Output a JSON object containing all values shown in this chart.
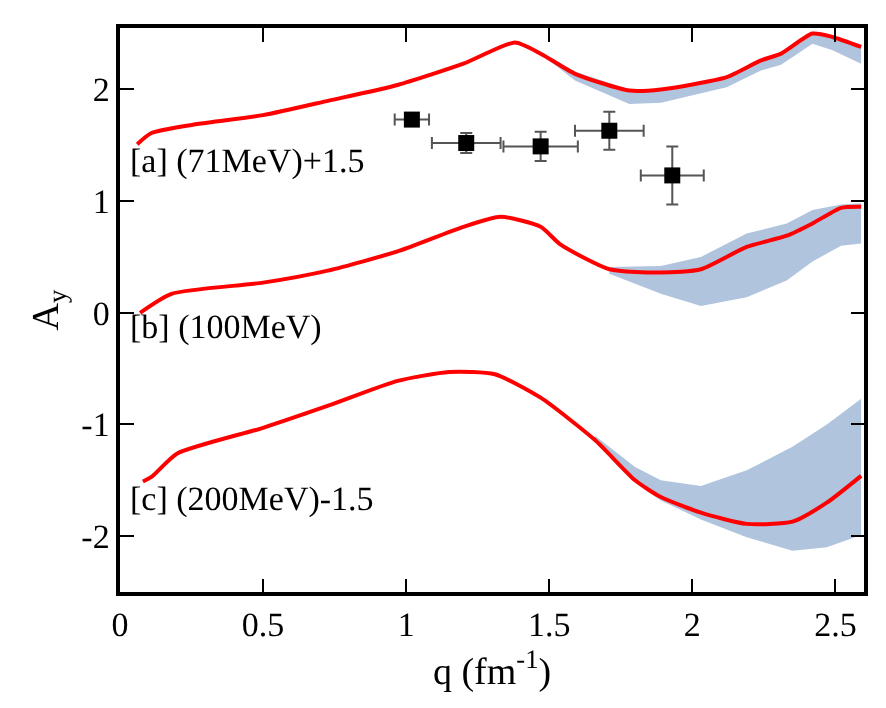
{
  "chart_data": {
    "type": "line",
    "xlabel": "q (fm$^{-1}$)",
    "ylabel": "A$_{y}$",
    "xlim": [
      0,
      2.6
    ],
    "ylim": [
      -2.5,
      2.55
    ],
    "xticks": [
      0,
      0.5,
      1,
      1.5,
      2,
      2.5
    ],
    "yticks": [
      -2,
      -1,
      0,
      1,
      2
    ],
    "series": [
      {
        "color": "#ff0000",
        "x": [
          0.06,
          0.11,
          0.27,
          0.5,
          0.73,
          0.97,
          1.2,
          1.38,
          1.47,
          1.59,
          1.78,
          1.89,
          2.12,
          2.24,
          2.31,
          2.42,
          2.49,
          2.59
        ],
        "values": [
          1.51,
          1.61,
          1.69,
          1.77,
          1.9,
          2.04,
          2.23,
          2.42,
          2.32,
          2.14,
          1.99,
          2.0,
          2.11,
          2.26,
          2.32,
          2.5,
          2.47,
          2.38
        ],
        "lower": [
          null,
          null,
          null,
          null,
          null,
          null,
          null,
          null,
          2.32,
          2.08,
          1.87,
          1.88,
          2.02,
          2.17,
          2.22,
          2.41,
          2.35,
          2.23
        ],
        "upper": [
          null,
          null,
          null,
          null,
          null,
          null,
          null,
          null,
          2.34,
          2.16,
          2.0,
          2.0,
          2.11,
          2.26,
          2.32,
          2.49,
          2.47,
          2.38
        ]
      },
      {
        "color": "#ff0000",
        "x": [
          0.07,
          0.18,
          0.5,
          0.73,
          0.97,
          1.2,
          1.33,
          1.47,
          1.54,
          1.71,
          1.89,
          2.03,
          2.19,
          2.33,
          2.42,
          2.52,
          2.59
        ],
        "values": [
          0,
          0.17,
          0.27,
          0.38,
          0.55,
          0.77,
          0.86,
          0.77,
          0.61,
          0.39,
          0.36,
          0.39,
          0.59,
          0.69,
          0.8,
          0.94,
          0.95
        ],
        "lower": [
          null,
          null,
          null,
          null,
          null,
          null,
          null,
          null,
          null,
          0.35,
          0.17,
          0.06,
          0.14,
          0.29,
          0.46,
          0.6,
          0.62
        ],
        "upper": [
          null,
          null,
          null,
          null,
          null,
          null,
          null,
          null,
          null,
          0.41,
          0.42,
          0.5,
          0.71,
          0.8,
          0.92,
          0.97,
          0.98
        ]
      },
      {
        "color": "#ff0000",
        "x": [
          0.08,
          0.11,
          0.2,
          0.5,
          0.73,
          0.97,
          1.15,
          1.31,
          1.47,
          1.66,
          1.8,
          1.89,
          2.03,
          2.19,
          2.35,
          2.47,
          2.59
        ],
        "values": [
          -1.51,
          -1.47,
          -1.26,
          -1.03,
          -0.83,
          -0.61,
          -0.53,
          -0.55,
          -0.76,
          -1.14,
          -1.5,
          -1.65,
          -1.79,
          -1.89,
          -1.87,
          -1.7,
          -1.46
        ],
        "lower": [
          null,
          null,
          null,
          null,
          null,
          null,
          null,
          null,
          null,
          -1.16,
          -1.52,
          -1.68,
          -1.85,
          -2.01,
          -2.13,
          -2.1,
          -1.99
        ],
        "upper": [
          null,
          null,
          null,
          null,
          null,
          null,
          null,
          null,
          null,
          -1.1,
          -1.38,
          -1.5,
          -1.55,
          -1.41,
          -1.2,
          -1.0,
          -0.77
        ]
      },
      {
        "type": "scatter",
        "color": "#000000",
        "marker": "square",
        "x": [
          1.02,
          1.21,
          1.47,
          1.71,
          1.93
        ],
        "values": [
          1.73,
          1.52,
          1.49,
          1.63,
          1.23
        ],
        "errors": [
          null,
          0.09,
          0.13,
          0.17,
          0.26
        ],
        "xerrors": [
          0.06,
          0.12,
          0.13,
          0.12,
          0.11
        ]
      }
    ],
    "annotations": [
      "[a] (71MeV)+1.5",
      "[b] (100MeV)",
      "[c] (200MeV)-1.5"
    ]
  }
}
